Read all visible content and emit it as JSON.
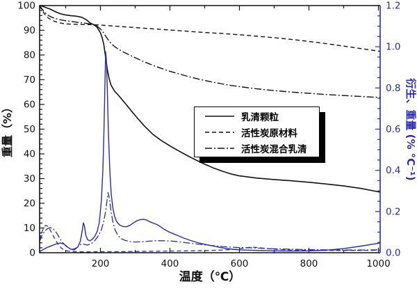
{
  "colors": {
    "black": "#111111",
    "blue": "#2929b2",
    "background": "#ffffff"
  },
  "legend": {
    "items": [
      {
        "label": "乳清颗粒",
        "style": "solid"
      },
      {
        "label": "活性炭原材料",
        "style": "dashed"
      },
      {
        "label": "活性炭混合乳清",
        "style": "dashdot"
      }
    ]
  },
  "chart_data": {
    "type": "line",
    "title": "",
    "grid": false,
    "legend_position": "center-right-inside",
    "x_axis": {
      "label": "温度（℃）",
      "min": 25,
      "max": 1005,
      "major_ticks": [
        200,
        400,
        600,
        800,
        1000
      ],
      "major_tick_labels": [
        "200",
        "400",
        "600",
        "800",
        "1000"
      ],
      "minor_ticks": [
        100,
        300,
        500,
        700,
        900
      ]
    },
    "y_left": {
      "label": "重量（%）",
      "min": 0,
      "max": 100,
      "major_ticks": [
        0,
        10,
        20,
        30,
        40,
        50,
        60,
        70,
        80,
        90,
        100
      ],
      "major_tick_labels": [
        "0",
        "10",
        "20",
        "30",
        "40",
        "50",
        "60",
        "70",
        "80",
        "90",
        "100"
      ],
      "minor_step": 2,
      "color": "#111111"
    },
    "y_right": {
      "label": "衍生、重量 (% °C⁻¹)",
      "min": 0,
      "max": 1.2,
      "major_ticks": [
        0.0,
        0.2,
        0.4,
        0.6,
        0.8,
        1.0,
        1.2
      ],
      "major_tick_labels": [
        "0.0",
        "0.2",
        "0.4",
        "0.6",
        "0.8",
        "1.0",
        "1.2"
      ],
      "minor_step": 0.05,
      "color": "#2929b2"
    },
    "series": [
      {
        "id": "tga-whey",
        "legend_label": "乳清颗粒",
        "axis": "left",
        "style": "solid",
        "color": "#111111",
        "width": 1.6,
        "data": [
          [
            25,
            100
          ],
          [
            35,
            99.6
          ],
          [
            45,
            99.1
          ],
          [
            55,
            98.6
          ],
          [
            65,
            97.9
          ],
          [
            75,
            97.2
          ],
          [
            85,
            96.7
          ],
          [
            95,
            96.3
          ],
          [
            105,
            96.1
          ],
          [
            115,
            95.9
          ],
          [
            125,
            95.8
          ],
          [
            135,
            95.6
          ],
          [
            145,
            95.3
          ],
          [
            150,
            95.0
          ],
          [
            160,
            94.2
          ],
          [
            170,
            93.0
          ],
          [
            180,
            92.3
          ],
          [
            190,
            91.3
          ],
          [
            200,
            89.0
          ],
          [
            205,
            87.0
          ],
          [
            210,
            84.0
          ],
          [
            215,
            79.0
          ],
          [
            220,
            74.0
          ],
          [
            225,
            70.5
          ],
          [
            230,
            68.0
          ],
          [
            240,
            65.5
          ],
          [
            250,
            64.0
          ],
          [
            260,
            62.3
          ],
          [
            275,
            59.8
          ],
          [
            300,
            55.5
          ],
          [
            325,
            51.5
          ],
          [
            350,
            48.0
          ],
          [
            375,
            45.4
          ],
          [
            400,
            43.2
          ],
          [
            425,
            41.2
          ],
          [
            450,
            39.3
          ],
          [
            475,
            37.5
          ],
          [
            500,
            35.8
          ],
          [
            525,
            34.3
          ],
          [
            550,
            33.0
          ],
          [
            575,
            31.9
          ],
          [
            600,
            31.1
          ],
          [
            650,
            30.2
          ],
          [
            700,
            29.6
          ],
          [
            750,
            29.1
          ],
          [
            800,
            28.5
          ],
          [
            850,
            27.8
          ],
          [
            900,
            27.0
          ],
          [
            950,
            26.0
          ],
          [
            1005,
            24.5
          ]
        ]
      },
      {
        "id": "tga-ac-raw",
        "legend_label": "活性炭原材料",
        "axis": "left",
        "style": "dashed",
        "color": "#111111",
        "width": 1.4,
        "data": [
          [
            25,
            100
          ],
          [
            30,
            98.6
          ],
          [
            40,
            96.4
          ],
          [
            50,
            95.0
          ],
          [
            60,
            94.1
          ],
          [
            70,
            93.5
          ],
          [
            80,
            93.1
          ],
          [
            90,
            92.8
          ],
          [
            100,
            92.6
          ],
          [
            120,
            92.45
          ],
          [
            140,
            92.35
          ],
          [
            160,
            92.3
          ],
          [
            180,
            92.25
          ],
          [
            200,
            92.1
          ],
          [
            250,
            91.6
          ],
          [
            300,
            91.1
          ],
          [
            350,
            90.6
          ],
          [
            400,
            90.1
          ],
          [
            450,
            89.6
          ],
          [
            500,
            89.1
          ],
          [
            550,
            88.7
          ],
          [
            600,
            88.2
          ],
          [
            650,
            87.6
          ],
          [
            700,
            87.0
          ],
          [
            750,
            86.3
          ],
          [
            800,
            85.5
          ],
          [
            850,
            84.6
          ],
          [
            900,
            83.6
          ],
          [
            950,
            82.6
          ],
          [
            1005,
            81.5
          ]
        ]
      },
      {
        "id": "tga-ac-whey",
        "legend_label": "活性炭混合乳清",
        "axis": "left",
        "style": "dashdot",
        "color": "#111111",
        "width": 1.4,
        "data": [
          [
            25,
            100
          ],
          [
            30,
            99.0
          ],
          [
            40,
            97.2
          ],
          [
            50,
            96.0
          ],
          [
            60,
            95.3
          ],
          [
            70,
            94.8
          ],
          [
            80,
            94.4
          ],
          [
            90,
            94.1
          ],
          [
            100,
            93.9
          ],
          [
            120,
            93.5
          ],
          [
            140,
            93.1
          ],
          [
            160,
            92.8
          ],
          [
            180,
            92.3
          ],
          [
            190,
            91.7
          ],
          [
            200,
            90.6
          ],
          [
            210,
            88.8
          ],
          [
            215,
            87.7
          ],
          [
            220,
            86.6
          ],
          [
            225,
            85.6
          ],
          [
            230,
            84.8
          ],
          [
            240,
            83.5
          ],
          [
            250,
            82.5
          ],
          [
            260,
            81.7
          ],
          [
            275,
            80.6
          ],
          [
            300,
            78.9
          ],
          [
            325,
            77.3
          ],
          [
            350,
            75.9
          ],
          [
            375,
            74.6
          ],
          [
            400,
            73.4
          ],
          [
            425,
            72.4
          ],
          [
            450,
            71.4
          ],
          [
            475,
            70.5
          ],
          [
            500,
            69.7
          ],
          [
            525,
            69.0
          ],
          [
            550,
            68.3
          ],
          [
            575,
            67.7
          ],
          [
            600,
            67.2
          ],
          [
            650,
            66.3
          ],
          [
            700,
            65.6
          ],
          [
            750,
            65.0
          ],
          [
            800,
            64.5
          ],
          [
            850,
            64.0
          ],
          [
            900,
            63.6
          ],
          [
            950,
            63.2
          ],
          [
            1005,
            62.8
          ]
        ]
      },
      {
        "id": "dtg-whey",
        "legend_label": "乳清颗粒",
        "axis": "right",
        "style": "solid",
        "color": "#2929b2",
        "width": 1.4,
        "data": [
          [
            25,
            0.006
          ],
          [
            35,
            0.015
          ],
          [
            45,
            0.024
          ],
          [
            55,
            0.031
          ],
          [
            65,
            0.038
          ],
          [
            75,
            0.044
          ],
          [
            85,
            0.047
          ],
          [
            95,
            0.042
          ],
          [
            105,
            0.028
          ],
          [
            115,
            0.017
          ],
          [
            125,
            0.014
          ],
          [
            135,
            0.028
          ],
          [
            142,
            0.055
          ],
          [
            147,
            0.1
          ],
          [
            151,
            0.145
          ],
          [
            154,
            0.13
          ],
          [
            158,
            0.085
          ],
          [
            163,
            0.063
          ],
          [
            170,
            0.058
          ],
          [
            177,
            0.066
          ],
          [
            184,
            0.08
          ],
          [
            191,
            0.105
          ],
          [
            197,
            0.15
          ],
          [
            203,
            0.26
          ],
          [
            207,
            0.4
          ],
          [
            210,
            0.58
          ],
          [
            213,
            0.82
          ],
          [
            215,
            0.975
          ],
          [
            217,
            0.94
          ],
          [
            220,
            0.78
          ],
          [
            223,
            0.58
          ],
          [
            227,
            0.4
          ],
          [
            231,
            0.285
          ],
          [
            236,
            0.215
          ],
          [
            241,
            0.175
          ],
          [
            247,
            0.15
          ],
          [
            255,
            0.135
          ],
          [
            265,
            0.127
          ],
          [
            275,
            0.126
          ],
          [
            285,
            0.133
          ],
          [
            295,
            0.145
          ],
          [
            305,
            0.155
          ],
          [
            315,
            0.161
          ],
          [
            325,
            0.162
          ],
          [
            335,
            0.157
          ],
          [
            345,
            0.148
          ],
          [
            355,
            0.142
          ],
          [
            365,
            0.135
          ],
          [
            375,
            0.124
          ],
          [
            385,
            0.112
          ],
          [
            400,
            0.099
          ],
          [
            420,
            0.085
          ],
          [
            440,
            0.071
          ],
          [
            460,
            0.059
          ],
          [
            480,
            0.049
          ],
          [
            500,
            0.041
          ],
          [
            520,
            0.034
          ],
          [
            540,
            0.027
          ],
          [
            560,
            0.021
          ],
          [
            580,
            0.017
          ],
          [
            600,
            0.014
          ],
          [
            650,
            0.011
          ],
          [
            700,
            0.009
          ],
          [
            750,
            0.008
          ],
          [
            800,
            0.009
          ],
          [
            850,
            0.012
          ],
          [
            900,
            0.02
          ],
          [
            950,
            0.032
          ],
          [
            1005,
            0.047
          ]
        ]
      },
      {
        "id": "dtg-ac-raw",
        "legend_label": "活性炭原材料",
        "axis": "right",
        "style": "dashed",
        "color": "#2929b2",
        "width": 1.3,
        "data": [
          [
            25,
            0.065
          ],
          [
            30,
            0.095
          ],
          [
            36,
            0.118
          ],
          [
            42,
            0.133
          ],
          [
            48,
            0.129
          ],
          [
            55,
            0.112
          ],
          [
            63,
            0.086
          ],
          [
            72,
            0.058
          ],
          [
            80,
            0.036
          ],
          [
            90,
            0.019
          ],
          [
            100,
            0.01
          ],
          [
            115,
            0.006
          ],
          [
            140,
            0.004
          ],
          [
            170,
            0.004
          ],
          [
            200,
            0.005
          ],
          [
            250,
            0.005
          ],
          [
            300,
            0.006
          ],
          [
            350,
            0.007
          ],
          [
            400,
            0.008
          ],
          [
            450,
            0.009
          ],
          [
            500,
            0.01
          ],
          [
            550,
            0.013
          ],
          [
            590,
            0.017
          ],
          [
            615,
            0.023
          ],
          [
            635,
            0.027
          ],
          [
            655,
            0.025
          ],
          [
            675,
            0.021
          ],
          [
            700,
            0.017
          ],
          [
            750,
            0.013
          ],
          [
            800,
            0.012
          ],
          [
            850,
            0.011
          ],
          [
            900,
            0.011
          ],
          [
            950,
            0.011
          ],
          [
            1005,
            0.012
          ]
        ]
      },
      {
        "id": "dtg-ac-whey",
        "legend_label": "活性炭混合乳清",
        "axis": "right",
        "style": "dashdot",
        "color": "#2929b2",
        "width": 1.3,
        "data": [
          [
            25,
            0.055
          ],
          [
            32,
            0.085
          ],
          [
            40,
            0.105
          ],
          [
            48,
            0.117
          ],
          [
            56,
            0.122
          ],
          [
            64,
            0.116
          ],
          [
            73,
            0.098
          ],
          [
            82,
            0.073
          ],
          [
            92,
            0.048
          ],
          [
            102,
            0.03
          ],
          [
            112,
            0.02
          ],
          [
            122,
            0.017
          ],
          [
            132,
            0.024
          ],
          [
            140,
            0.036
          ],
          [
            147,
            0.044
          ],
          [
            154,
            0.041
          ],
          [
            162,
            0.037
          ],
          [
            172,
            0.042
          ],
          [
            182,
            0.055
          ],
          [
            192,
            0.077
          ],
          [
            202,
            0.108
          ],
          [
            209,
            0.148
          ],
          [
            215,
            0.2
          ],
          [
            219,
            0.255
          ],
          [
            222,
            0.292
          ],
          [
            226,
            0.262
          ],
          [
            231,
            0.195
          ],
          [
            236,
            0.148
          ],
          [
            242,
            0.112
          ],
          [
            250,
            0.085
          ],
          [
            260,
            0.068
          ],
          [
            272,
            0.059
          ],
          [
            285,
            0.054
          ],
          [
            300,
            0.052
          ],
          [
            320,
            0.053
          ],
          [
            340,
            0.056
          ],
          [
            360,
            0.058
          ],
          [
            380,
            0.058
          ],
          [
            400,
            0.057
          ],
          [
            420,
            0.054
          ],
          [
            440,
            0.05
          ],
          [
            460,
            0.046
          ],
          [
            480,
            0.042
          ],
          [
            500,
            0.038
          ],
          [
            525,
            0.034
          ],
          [
            550,
            0.03
          ],
          [
            575,
            0.027
          ],
          [
            600,
            0.025
          ],
          [
            630,
            0.024
          ],
          [
            660,
            0.022
          ],
          [
            700,
            0.019
          ],
          [
            750,
            0.017
          ],
          [
            800,
            0.015
          ],
          [
            850,
            0.014
          ],
          [
            900,
            0.013
          ],
          [
            950,
            0.013
          ],
          [
            1005,
            0.014
          ]
        ]
      }
    ]
  }
}
